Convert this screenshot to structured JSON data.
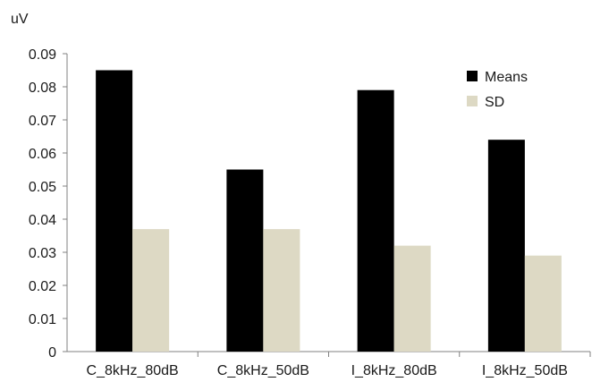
{
  "chart_data": {
    "type": "bar",
    "title": "",
    "ylabel": "uV",
    "xlabel": "",
    "ylim": [
      0,
      0.09
    ],
    "yticks": [
      "0",
      "0.01",
      "0.02",
      "0.03",
      "0.04",
      "0.05",
      "0.06",
      "0.07",
      "0.08",
      "0.09"
    ],
    "categories": [
      "C_8kHz_80dB",
      "C_8kHz_50dB",
      "I_8kHz_80dB",
      "I_8kHz_50dB"
    ],
    "series": [
      {
        "name": "Means",
        "color": "#000000",
        "values": [
          0.085,
          0.055,
          0.079,
          0.064
        ]
      },
      {
        "name": "SD",
        "color": "#ddd9c4",
        "values": [
          0.037,
          0.037,
          0.032,
          0.029
        ]
      }
    ],
    "grid": false,
    "legend": "top-right"
  }
}
